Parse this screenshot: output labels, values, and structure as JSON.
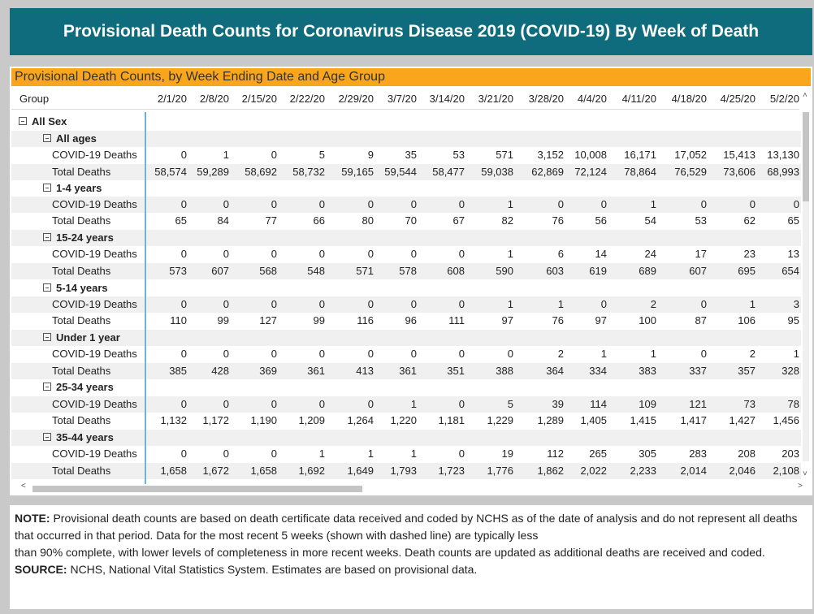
{
  "title": "Provisional Death Counts for Coronavirus Disease 2019 (COVID-19) By Week of Death",
  "panel_title": "Provisional Death Counts, by Week Ending Date and Age Group",
  "colors": {
    "title_bg": "#0e6c7c",
    "panel_header_bg": "#f9a61c",
    "row_shade": "#f0f0f0"
  },
  "table": {
    "group_header": "Group",
    "columns": [
      "2/1/20",
      "2/8/20",
      "2/15/20",
      "2/22/20",
      "2/29/20",
      "3/7/20",
      "3/14/20",
      "3/21/20",
      "3/28/20",
      "4/4/20",
      "4/11/20",
      "4/18/20",
      "4/25/20",
      "5/2/20"
    ],
    "rows": [
      {
        "label": "All Sex",
        "level": 0,
        "kind": "group",
        "values": []
      },
      {
        "label": "All ages",
        "level": 1,
        "kind": "group",
        "values": []
      },
      {
        "label": "COVID-19 Deaths",
        "level": 2,
        "kind": "data",
        "values": [
          "0",
          "1",
          "0",
          "5",
          "9",
          "35",
          "53",
          "571",
          "3,152",
          "10,008",
          "16,171",
          "17,052",
          "15,413",
          "13,130"
        ]
      },
      {
        "label": "Total Deaths",
        "level": 2,
        "kind": "data",
        "values": [
          "58,574",
          "59,289",
          "58,692",
          "58,732",
          "59,165",
          "59,544",
          "58,477",
          "59,038",
          "62,869",
          "72,124",
          "78,864",
          "76,529",
          "73,606",
          "68,993"
        ]
      },
      {
        "label": "1-4 years",
        "level": 1,
        "kind": "group",
        "values": []
      },
      {
        "label": "COVID-19 Deaths",
        "level": 2,
        "kind": "data",
        "values": [
          "0",
          "0",
          "0",
          "0",
          "0",
          "0",
          "0",
          "1",
          "0",
          "0",
          "1",
          "0",
          "0",
          "0"
        ]
      },
      {
        "label": "Total Deaths",
        "level": 2,
        "kind": "data",
        "values": [
          "65",
          "84",
          "77",
          "66",
          "80",
          "70",
          "67",
          "82",
          "76",
          "56",
          "54",
          "53",
          "62",
          "65"
        ]
      },
      {
        "label": "15-24 years",
        "level": 1,
        "kind": "group",
        "values": []
      },
      {
        "label": "COVID-19 Deaths",
        "level": 2,
        "kind": "data",
        "values": [
          "0",
          "0",
          "0",
          "0",
          "0",
          "0",
          "0",
          "1",
          "6",
          "14",
          "24",
          "17",
          "23",
          "13"
        ]
      },
      {
        "label": "Total Deaths",
        "level": 2,
        "kind": "data",
        "values": [
          "573",
          "607",
          "568",
          "548",
          "571",
          "578",
          "608",
          "590",
          "603",
          "619",
          "689",
          "607",
          "695",
          "654"
        ]
      },
      {
        "label": "5-14 years",
        "level": 1,
        "kind": "group",
        "values": []
      },
      {
        "label": "COVID-19 Deaths",
        "level": 2,
        "kind": "data",
        "values": [
          "0",
          "0",
          "0",
          "0",
          "0",
          "0",
          "0",
          "1",
          "1",
          "0",
          "2",
          "0",
          "1",
          "3"
        ]
      },
      {
        "label": "Total Deaths",
        "level": 2,
        "kind": "data",
        "values": [
          "110",
          "99",
          "127",
          "99",
          "116",
          "96",
          "111",
          "97",
          "76",
          "97",
          "100",
          "87",
          "106",
          "95"
        ]
      },
      {
        "label": "Under 1 year",
        "level": 1,
        "kind": "group",
        "values": []
      },
      {
        "label": "COVID-19 Deaths",
        "level": 2,
        "kind": "data",
        "values": [
          "0",
          "0",
          "0",
          "0",
          "0",
          "0",
          "0",
          "0",
          "2",
          "1",
          "1",
          "0",
          "2",
          "1"
        ]
      },
      {
        "label": "Total Deaths",
        "level": 2,
        "kind": "data",
        "values": [
          "385",
          "428",
          "369",
          "361",
          "413",
          "361",
          "351",
          "388",
          "364",
          "334",
          "383",
          "337",
          "357",
          "328"
        ]
      },
      {
        "label": "25-34 years",
        "level": 1,
        "kind": "group",
        "values": []
      },
      {
        "label": "COVID-19 Deaths",
        "level": 2,
        "kind": "data",
        "values": [
          "0",
          "0",
          "0",
          "0",
          "0",
          "1",
          "0",
          "5",
          "39",
          "114",
          "109",
          "121",
          "73",
          "78"
        ]
      },
      {
        "label": "Total Deaths",
        "level": 2,
        "kind": "data",
        "values": [
          "1,132",
          "1,172",
          "1,190",
          "1,209",
          "1,264",
          "1,220",
          "1,181",
          "1,229",
          "1,289",
          "1,405",
          "1,415",
          "1,417",
          "1,427",
          "1,456"
        ]
      },
      {
        "label": "35-44 years",
        "level": 1,
        "kind": "group",
        "values": []
      },
      {
        "label": "COVID-19 Deaths",
        "level": 2,
        "kind": "data",
        "values": [
          "0",
          "0",
          "0",
          "1",
          "1",
          "1",
          "0",
          "19",
          "112",
          "265",
          "305",
          "283",
          "208",
          "203"
        ]
      },
      {
        "label": "Total Deaths",
        "level": 2,
        "kind": "data",
        "values": [
          "1,658",
          "1,672",
          "1,658",
          "1,692",
          "1,649",
          "1,793",
          "1,723",
          "1,776",
          "1,862",
          "2,022",
          "2,233",
          "2,014",
          "2,046",
          "2,108"
        ]
      }
    ]
  },
  "scroll": {
    "up": "˄",
    "down": "˅",
    "left": "<",
    "right": ">"
  },
  "notes": {
    "note_label": "NOTE:",
    "note_text": " Provisional death counts are based on death certificate data received and coded by NCHS as of the date of analysis and do not represent all deaths that occurred in that period. Data for the most recent 5 weeks (shown with dashed line) are typically less",
    "note_text2": "than 90% complete, with lower levels of completeness in more recent weeks.  Death counts are updated as additional deaths are received and coded.",
    "source_label": "SOURCE:",
    "source_text": " NCHS, National Vital Statistics System. Estimates are based on provisional data."
  }
}
